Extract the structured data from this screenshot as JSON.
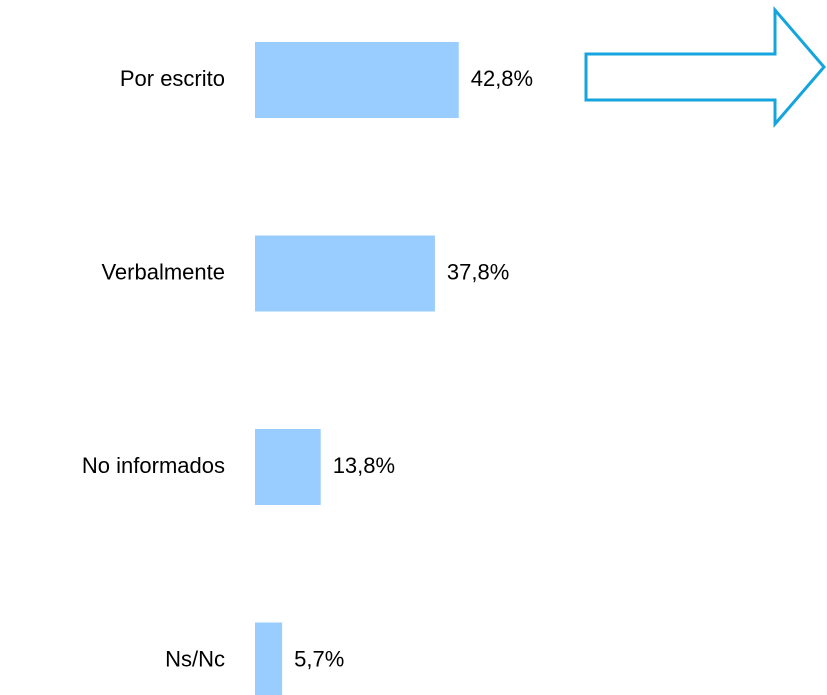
{
  "chart_data": {
    "type": "bar",
    "orientation": "horizontal",
    "categories": [
      "Por escrito",
      "Verbalmente",
      "No informados",
      "Ns/Nc"
    ],
    "values": [
      42.8,
      37.8,
      13.8,
      5.7
    ],
    "value_labels": [
      "42,8%",
      "37,8%",
      "13,8%",
      "5,7%"
    ],
    "color": "#99ccff"
  }
}
